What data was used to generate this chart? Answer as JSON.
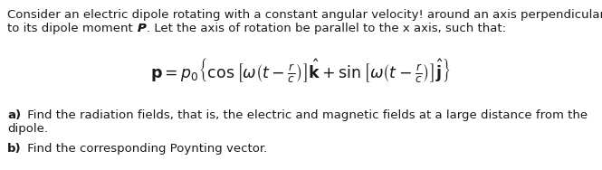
{
  "background_color": "#ffffff",
  "figsize": [
    6.65,
    1.88
  ],
  "dpi": 100,
  "text_color": "#1a1a1a",
  "fontsize_body": 9.5,
  "fontsize_eq": 12.5,
  "line1": "Consider an electric dipole rotating with a constant angular velocity! around an axis perpendicular",
  "line2_pre": "to its dipole moment ",
  "line2_bold": "P",
  "line2_post": ". Let the axis of rotation be parallel to the x axis, such that:",
  "equation": "$\\mathbf{p} = p_0\\left\\{\\cos\\left[\\omega\\left(t-\\frac{r}{c}\\right)\\right]\\hat{\\mathbf{k}}+\\sin\\left[\\omega\\left(t-\\frac{r}{c}\\right)\\right]\\hat{\\mathbf{j}}\\right\\}$",
  "parta_bold": "a)",
  "parta_text": " Find the radiation fields, that is, the electric and magnetic fields at a large distance from the",
  "parta_text2": "dipole.",
  "partb_bold": "b)",
  "partb_text": " Find the corresponding Poynting vector."
}
